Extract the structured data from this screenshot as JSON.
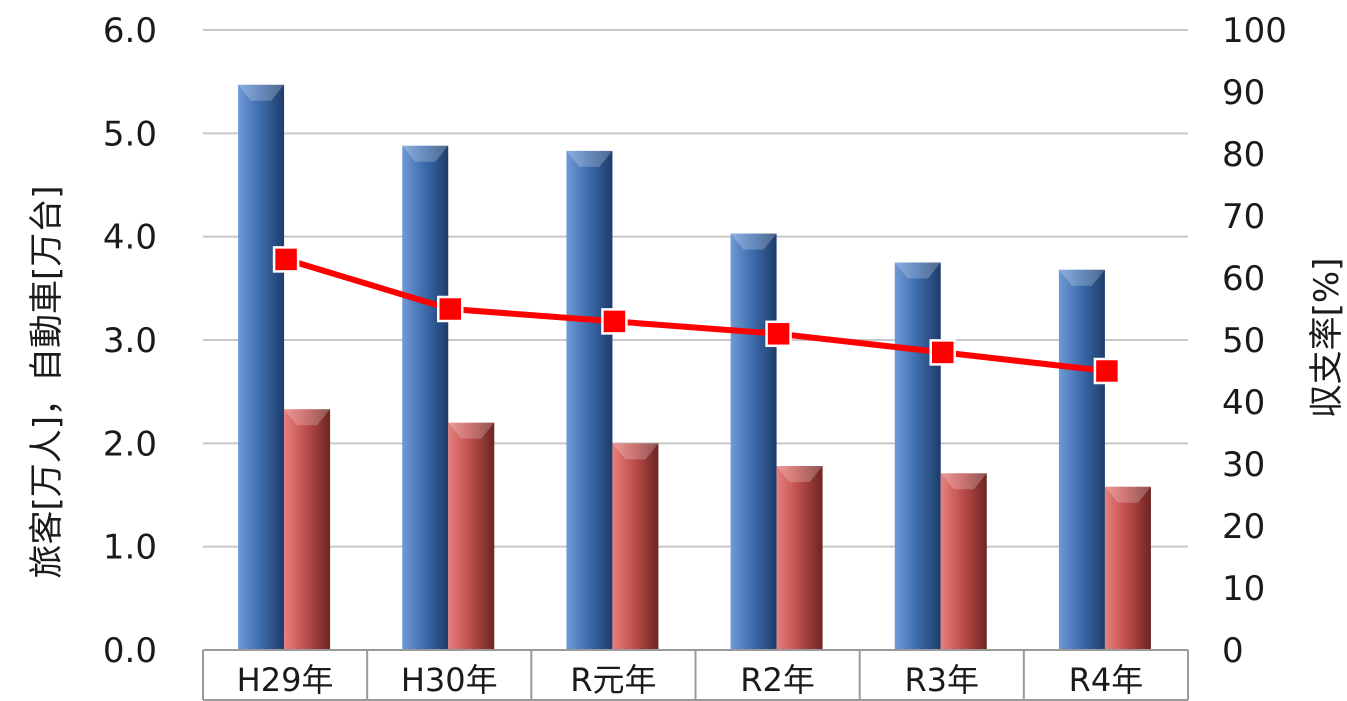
{
  "chart_data": {
    "type": "bar",
    "categories": [
      "H29年",
      "H30年",
      "R元年",
      "R2年",
      "R3年",
      "R4年"
    ],
    "series": [
      {
        "axis": "left",
        "type": "bar",
        "color": "#3f6fb0",
        "values": [
          5.47,
          4.88,
          4.83,
          4.03,
          3.75,
          3.68
        ]
      },
      {
        "axis": "left",
        "type": "bar",
        "color": "#c0504d",
        "values": [
          2.33,
          2.2,
          2.0,
          1.78,
          1.71,
          1.58
        ]
      },
      {
        "axis": "right",
        "type": "line",
        "color": "#ff0000",
        "values": [
          63,
          55,
          53,
          51,
          48,
          45
        ]
      }
    ],
    "ylabel": "旅客[万人]，自動車[万台]",
    "ylabel_right": "収支率[%]",
    "ylim": [
      0,
      6.0
    ],
    "ylim_right": [
      0,
      100
    ],
    "yticks": [
      "0.0",
      "1.0",
      "2.0",
      "3.0",
      "4.0",
      "5.0",
      "6.0"
    ],
    "yticks_right": [
      "0",
      "10",
      "20",
      "30",
      "40",
      "50",
      "60",
      "70",
      "80",
      "90",
      "100"
    ],
    "grid": true,
    "legend": "none"
  }
}
